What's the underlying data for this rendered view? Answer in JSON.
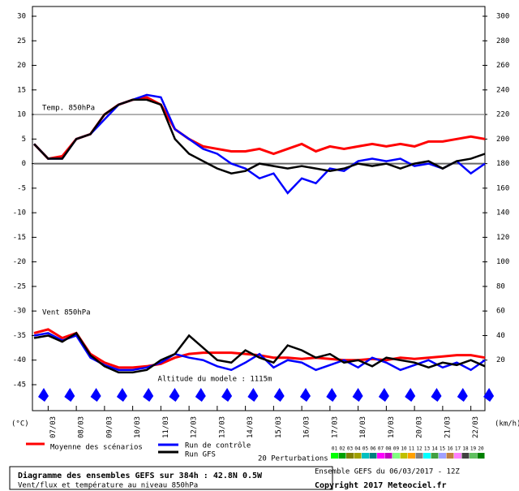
{
  "chart_data": {
    "type": "line",
    "temp_label": "Temp. 850hPa",
    "wind_label": "Vent 850hPa",
    "altitude": "Altitude du modele : 1115m",
    "ylabel": "(°C)",
    "y2label": "(km/h)",
    "xlim": [
      0,
      384
    ],
    "xticks": [
      {
        "value": 12,
        "label": "07/03"
      },
      {
        "value": 36,
        "label": "08/03"
      },
      {
        "value": 60,
        "label": "09/03"
      },
      {
        "value": 84,
        "label": "10/03"
      },
      {
        "value": 108,
        "label": "11/03"
      },
      {
        "value": 132,
        "label": "12/03"
      },
      {
        "value": 156,
        "label": "13/03"
      },
      {
        "value": 180,
        "label": "14/03"
      },
      {
        "value": 204,
        "label": "15/03"
      },
      {
        "value": 228,
        "label": "16/03"
      },
      {
        "value": 252,
        "label": "17/03"
      },
      {
        "value": 276,
        "label": "18/03"
      },
      {
        "value": 300,
        "label": "19/03"
      },
      {
        "value": 324,
        "label": "20/03"
      },
      {
        "value": 348,
        "label": "21/03"
      },
      {
        "value": 372,
        "label": "22/03"
      }
    ],
    "ylim": [
      -45,
      30
    ],
    "yticks": [
      30,
      25,
      20,
      15,
      10,
      5,
      0,
      -5,
      -10,
      -15,
      -20,
      -25,
      -30,
      -35,
      -40,
      -45
    ],
    "y2lim": [
      0,
      300
    ],
    "y2ticks": [
      300,
      280,
      260,
      240,
      220,
      200,
      180,
      160,
      140,
      120,
      100,
      80,
      60,
      40,
      20
    ],
    "hlines": [
      10,
      0
    ],
    "x": [
      0,
      12,
      24,
      36,
      48,
      60,
      72,
      84,
      96,
      108,
      120,
      132,
      144,
      156,
      168,
      180,
      192,
      204,
      216,
      228,
      240,
      252,
      264,
      276,
      288,
      300,
      312,
      324,
      336,
      348,
      360,
      372,
      384
    ],
    "series": [
      {
        "name": "Moyenne des scénarios",
        "color": "#ff0000",
        "width": 3,
        "values": [
          4,
          1,
          1.5,
          5,
          6,
          10,
          12,
          13,
          13.5,
          12,
          7,
          5,
          3.5,
          3,
          2.5,
          2.5,
          3,
          2,
          3,
          4,
          2.5,
          3.5,
          3,
          3.5,
          4,
          3.5,
          4,
          3.5,
          4.5,
          4.5,
          5,
          5.5,
          5
        ]
      },
      {
        "name": "Run de contrôle",
        "color": "#0000ff",
        "width": 2.5,
        "values": [
          4,
          1,
          1,
          5,
          6,
          9,
          12,
          13,
          14,
          13.5,
          7,
          5,
          3,
          2,
          0,
          -1,
          -3,
          -2,
          -6,
          -3,
          -4,
          -1,
          -1.5,
          0.5,
          1,
          0.5,
          1,
          -0.5,
          0,
          -1,
          0.5,
          -2,
          0
        ]
      },
      {
        "name": "Run GFS",
        "color": "#000000",
        "width": 2.5,
        "values": [
          4,
          1,
          1,
          5,
          6,
          10,
          12,
          13,
          13,
          12,
          5,
          2,
          0.5,
          -1,
          -2,
          -1.5,
          0,
          -0.5,
          -1,
          -0.5,
          -1,
          -1.5,
          -1,
          0,
          -0.5,
          0,
          -1,
          0,
          0.5,
          -1,
          0.5,
          1,
          2
        ]
      },
      {
        "color": "#ff0000",
        "width": 3,
        "axis": "y2",
        "values": [
          42,
          45,
          38,
          42,
          25,
          18,
          14,
          14,
          15,
          17,
          22,
          25,
          26,
          26,
          26,
          25,
          24,
          22,
          22,
          21,
          22,
          21,
          20,
          20,
          21,
          20,
          22,
          21,
          22,
          23,
          24,
          24,
          22
        ]
      },
      {
        "color": "#0000ff",
        "width": 2.5,
        "axis": "y2",
        "values": [
          40,
          42,
          36,
          40,
          22,
          16,
          12,
          12,
          14,
          18,
          25,
          22,
          20,
          15,
          12,
          18,
          25,
          14,
          20,
          18,
          12,
          16,
          20,
          14,
          22,
          18,
          12,
          16,
          20,
          14,
          18,
          12,
          20
        ]
      },
      {
        "color": "#000000",
        "width": 2.5,
        "axis": "y2",
        "values": [
          38,
          40,
          35,
          42,
          24,
          15,
          10,
          10,
          12,
          20,
          25,
          40,
          30,
          20,
          18,
          28,
          22,
          18,
          32,
          28,
          22,
          25,
          18,
          20,
          15,
          22,
          20,
          18,
          14,
          18,
          16,
          20,
          15
        ]
      }
    ],
    "perturbations_label": "20 Perturbations",
    "perturbations": [
      "01",
      "02",
      "03",
      "04",
      "05",
      "06",
      "07",
      "08",
      "09",
      "10",
      "11",
      "12",
      "13",
      "14",
      "15",
      "16",
      "17",
      "18",
      "19",
      "20"
    ],
    "perturbation_colors": [
      "#00ff00",
      "#00a000",
      "#808000",
      "#a0a000",
      "#00c0c0",
      "#008080",
      "#ff00ff",
      "#c000c0",
      "#80ff80",
      "#c0c000",
      "#ffa000",
      "#808080",
      "#00ffff",
      "#40a040",
      "#a0a0ff",
      "#c08040",
      "#ff80ff",
      "#404040",
      "#60c060",
      "#008000"
    ],
    "footer": {
      "title": "Diagramme des ensembles GEFS sur 384h : 42.8N 0.5W",
      "subtitle": "Vent/flux et température au niveau 850hPa",
      "run": "Ensemble GEFS du 06/03/2017 - 12Z",
      "copyright": "Copyright 2017 Meteociel.fr"
    }
  }
}
